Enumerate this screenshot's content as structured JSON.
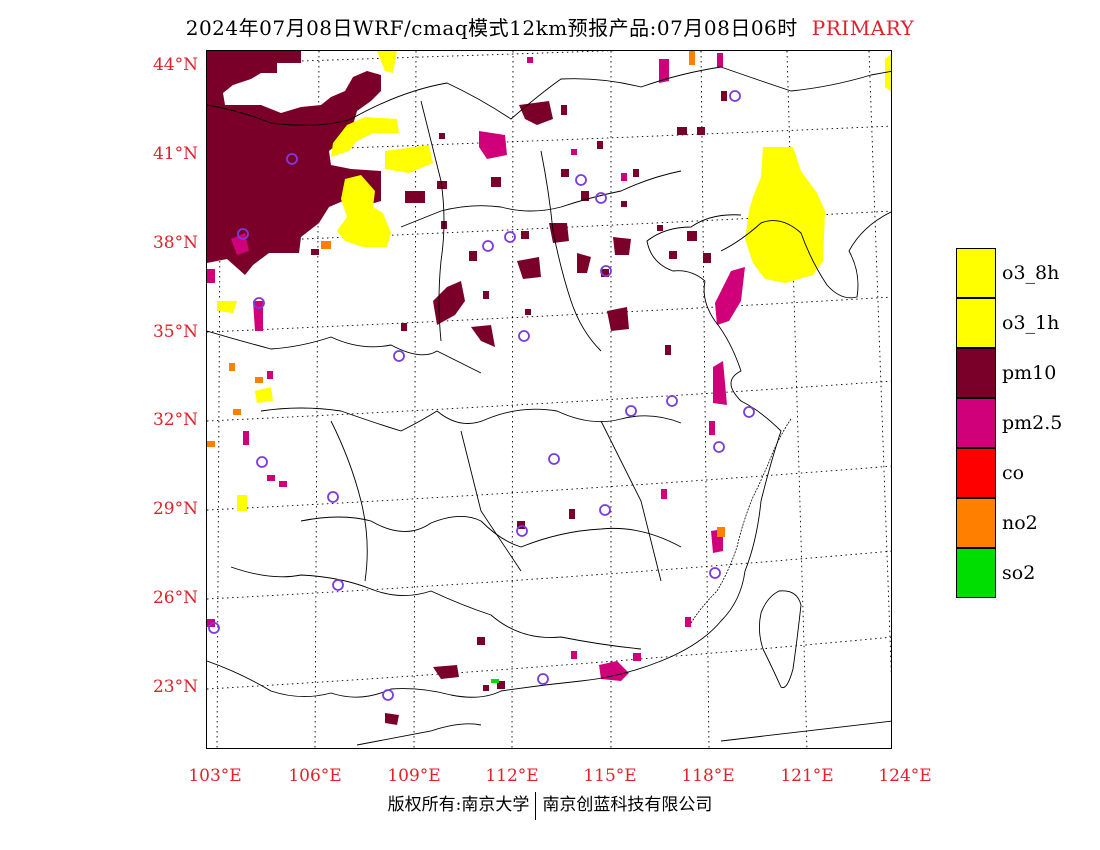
{
  "header": {
    "title": "2024年07月08日WRF/cmaq模式12km预报产品:07月08日06时",
    "tag": "PRIMARY"
  },
  "map": {
    "lat_labels": [
      "44°N",
      "41°N",
      "38°N",
      "35°N",
      "32°N",
      "29°N",
      "26°N",
      "23°N"
    ],
    "lon_labels": [
      "103°E",
      "106°E",
      "109°E",
      "112°E",
      "115°E",
      "118°E",
      "121°E",
      "124°E"
    ]
  },
  "legend": {
    "items": [
      {
        "label": "o3_8h",
        "color": "#ffff00"
      },
      {
        "label": "o3_1h",
        "color": "#ffff00"
      },
      {
        "label": "pm10",
        "color": "#7a0029"
      },
      {
        "label": "pm2.5",
        "color": "#d0007a"
      },
      {
        "label": "co",
        "color": "#ff0000"
      },
      {
        "label": "no2",
        "color": "#ff8000"
      },
      {
        "label": "so2",
        "color": "#00dd00"
      }
    ]
  },
  "footer": {
    "left": "版权所有:南京大学",
    "right": "南京创蓝科技有限公司"
  },
  "colors": {
    "axis_label": "#e0202a",
    "station_marker": "#7a3ce0",
    "pm10": "#7a0029",
    "pm25": "#d0007a",
    "o3": "#ffff00",
    "no2": "#ff8000",
    "so2": "#00dd00"
  }
}
